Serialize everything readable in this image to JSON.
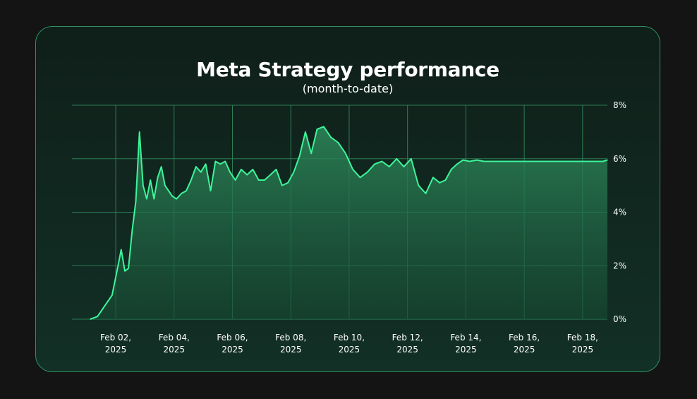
{
  "chart_data": {
    "type": "area",
    "title": "Meta Strategy performance",
    "subtitle": "(month-to-date)",
    "x_range": [
      "2025-02-01",
      "2025-02-18"
    ],
    "x_tick_labels": [
      "Feb 02,\n2025",
      "Feb 04,\n2025",
      "Feb 06,\n2025",
      "Feb 08,\n2025",
      "Feb 10,\n2025",
      "Feb 12,\n2025",
      "Feb 14,\n2025",
      "Feb 16,\n2025",
      "Feb 18,\n2025"
    ],
    "y_tick_labels": [
      "0%",
      "2%",
      "4%",
      "6%",
      "8%"
    ],
    "ylim": [
      0,
      8
    ],
    "y_unit": "%",
    "grid": true,
    "colors": {
      "line": "#3df59a",
      "grid": "#2c7d57",
      "fill_top": "#2d8a5b",
      "fill_bottom": "#174a33"
    },
    "series": [
      {
        "x": [
          "2025-02-01",
          "2025-02-01",
          "2025-02-01",
          "2025-02-01",
          "2025-02-02",
          "2025-02-02",
          "2025-02-02",
          "2025-02-02",
          "2025-02-02",
          "2025-02-02",
          "2025-02-02",
          "2025-02-02",
          "2025-02-03",
          "2025-02-03",
          "2025-02-03",
          "2025-02-03",
          "2025-02-03",
          "2025-02-03",
          "2025-02-03",
          "2025-02-03",
          "2025-02-04",
          "2025-02-04",
          "2025-02-04",
          "2025-02-04",
          "2025-02-04",
          "2025-02-04",
          "2025-02-05",
          "2025-02-05",
          "2025-02-05",
          "2025-02-05",
          "2025-02-05",
          "2025-02-05",
          "2025-02-06",
          "2025-02-06",
          "2025-02-06",
          "2025-02-06",
          "2025-02-06",
          "2025-02-07",
          "2025-02-07",
          "2025-02-07",
          "2025-02-07",
          "2025-02-07",
          "2025-02-08",
          "2025-02-08",
          "2025-02-08",
          "2025-02-08",
          "2025-02-08",
          "2025-02-09",
          "2025-02-09",
          "2025-02-09",
          "2025-02-09",
          "2025-02-10",
          "2025-02-10",
          "2025-02-10",
          "2025-02-10",
          "2025-02-11",
          "2025-02-11",
          "2025-02-11",
          "2025-02-11",
          "2025-02-12",
          "2025-02-12",
          "2025-02-12",
          "2025-02-12",
          "2025-02-13",
          "2025-02-13",
          "2025-02-13",
          "2025-02-13",
          "2025-02-13",
          "2025-02-14",
          "2025-02-14",
          "2025-02-14",
          "2025-02-14",
          "2025-02-15",
          "2025-02-15",
          "2025-02-15",
          "2025-02-15",
          "2025-02-16",
          "2025-02-16",
          "2025-02-16",
          "2025-02-16",
          "2025-02-17",
          "2025-02-17",
          "2025-02-17",
          "2025-02-17",
          "2025-02-17",
          "2025-02-18",
          "2025-02-18",
          "2025-02-18",
          "2025-02-18",
          "2025-02-18"
        ],
        "y": [
          0.0,
          0.1,
          0.5,
          0.9,
          1.9,
          2.6,
          1.8,
          1.9,
          3.3,
          4.4,
          7.0,
          5.0,
          4.5,
          5.2,
          4.5,
          5.3,
          5.7,
          5.0,
          4.8,
          4.6,
          4.5,
          4.7,
          4.8,
          5.2,
          5.7,
          5.5,
          5.8,
          4.8,
          5.9,
          5.8,
          5.9,
          5.5,
          5.2,
          5.6,
          5.4,
          5.6,
          5.2,
          5.2,
          5.4,
          5.6,
          5.0,
          5.1,
          5.5,
          6.1,
          7.0,
          6.2,
          7.1,
          7.2,
          6.8,
          6.6,
          6.2,
          5.6,
          5.3,
          5.5,
          5.8,
          5.9,
          5.7,
          6.0,
          5.7,
          6.0,
          5.0,
          4.7,
          5.3,
          5.1,
          5.2,
          5.6,
          5.8,
          5.95,
          5.9,
          5.95,
          5.9,
          5.9,
          5.9,
          5.9,
          5.9,
          5.9,
          5.9,
          5.9,
          5.9,
          5.9,
          5.9,
          5.9,
          5.9,
          5.9,
          5.9,
          5.9,
          5.9,
          5.9,
          5.9,
          5.95
        ]
      }
    ]
  }
}
